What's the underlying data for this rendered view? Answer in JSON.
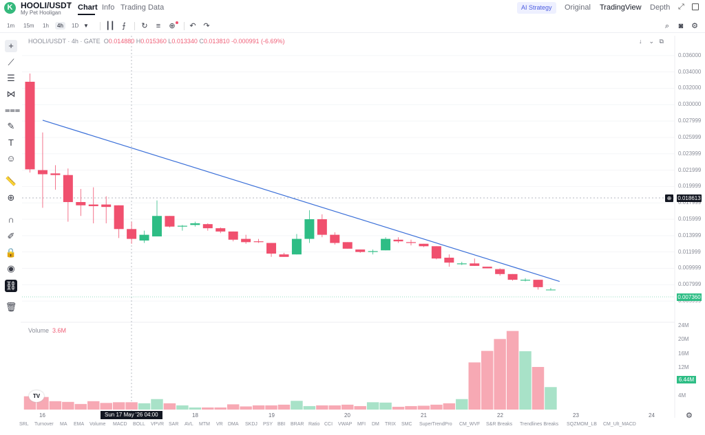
{
  "header": {
    "logo_letter": "K",
    "pair": "HOOLI/USDT",
    "caret": "▾",
    "subtitle": "My Pet Hooligan",
    "tabs": [
      "Chart",
      "Info",
      "Trading Data"
    ],
    "ai_strategy": "AI Strategy",
    "view_tabs": [
      "Original",
      "TradingView",
      "Depth"
    ]
  },
  "toolbar": {
    "timeframes": [
      "1m",
      "15m",
      "1h",
      "4h",
      "1D"
    ],
    "active_timeframe": "4h"
  },
  "legend": {
    "symbol": "HOOLI/USDT · 4h · GATE",
    "open_label": "O",
    "open": "0.014880",
    "high_label": "H",
    "high": "0.015360",
    "low_label": "L",
    "low": "0.013340",
    "close_label": "C",
    "close": "0.013810",
    "change": "-0.000991 (-6.69%)"
  },
  "volume_legend": {
    "label": "Volume",
    "value": "3.6M"
  },
  "price_axis": {
    "ticks": [
      "0.036000",
      "0.034000",
      "0.032000",
      "0.030000",
      "0.027999",
      "0.025999",
      "0.023999",
      "0.021999",
      "0.019999",
      "0.017999",
      "0.015999",
      "0.013999",
      "0.011999",
      "0.009999",
      "0.007999",
      "0.005999"
    ],
    "crosshair_price": "0.018613",
    "last_price": "0.007360"
  },
  "volume_axis": {
    "ticks": [
      "24M",
      "20M",
      "16M",
      "12M",
      "8M",
      "4M"
    ],
    "last_volume": "6.44M"
  },
  "time_axis": {
    "ticks": [
      "16",
      "18",
      "19",
      "20",
      "21",
      "22",
      "23",
      "24"
    ],
    "crosshair_date": "Sun 17 May '26   04:00"
  },
  "indicators": [
    "SRL",
    "Turnover",
    "MA",
    "EMA",
    "Volume",
    "MACD",
    "BOLL",
    "VPVR",
    "SAR",
    "AVL",
    "MTM",
    "VR",
    "DMA",
    "SKDJ",
    "PSY",
    "BBI",
    "BRAR",
    "Ratio",
    "CCI",
    "VWAP",
    "MFI",
    "DM",
    "TRIX",
    "SMC",
    "SuperTrendPro",
    "CM_WVF",
    "S&R Breaks",
    "Trendlines Breaks",
    "SQZMOM_LB",
    "CM_Ult_MACD"
  ],
  "colors": {
    "up": "#2ebd85",
    "down": "#f0506e",
    "up_vol": "#a8e2c8",
    "down_vol": "#f7a9b4",
    "trendline": "#3a6fd8",
    "accent": "#4b5be0"
  },
  "chart_data": {
    "type": "candlestick",
    "ylim": [
      0.005,
      0.0375
    ],
    "candles": [
      {
        "o": 0.0328,
        "h": 0.0338,
        "l": 0.0217,
        "c": 0.0221,
        "v": 3.8
      },
      {
        "o": 0.022,
        "h": 0.0266,
        "l": 0.0174,
        "c": 0.0215,
        "v": 3.6
      },
      {
        "o": 0.0216,
        "h": 0.0226,
        "l": 0.0196,
        "c": 0.0214,
        "v": 2.4
      },
      {
        "o": 0.0214,
        "h": 0.0222,
        "l": 0.0157,
        "c": 0.0181,
        "v": 2.2
      },
      {
        "o": 0.0181,
        "h": 0.0197,
        "l": 0.0164,
        "c": 0.0177,
        "v": 1.6
      },
      {
        "o": 0.0178,
        "h": 0.0199,
        "l": 0.0155,
        "c": 0.0176,
        "v": 2.4
      },
      {
        "o": 0.0178,
        "h": 0.0188,
        "l": 0.0155,
        "c": 0.0175,
        "v": 1.9
      },
      {
        "o": 0.0177,
        "h": 0.0177,
        "l": 0.0137,
        "c": 0.0148,
        "v": 2.1
      },
      {
        "o": 0.0148,
        "h": 0.0157,
        "l": 0.013,
        "c": 0.0136,
        "v": 2.1
      },
      {
        "o": 0.0134,
        "h": 0.0146,
        "l": 0.0131,
        "c": 0.0141,
        "v": 1.8
      },
      {
        "o": 0.0139,
        "h": 0.0183,
        "l": 0.0139,
        "c": 0.0164,
        "v": 3.0
      },
      {
        "o": 0.0164,
        "h": 0.0164,
        "l": 0.015,
        "c": 0.0151,
        "v": 1.8
      },
      {
        "o": 0.0151,
        "h": 0.0153,
        "l": 0.0146,
        "c": 0.0152,
        "v": 1.2
      },
      {
        "o": 0.0153,
        "h": 0.0157,
        "l": 0.0151,
        "c": 0.0155,
        "v": 0.6
      },
      {
        "o": 0.0154,
        "h": 0.0155,
        "l": 0.0146,
        "c": 0.0149,
        "v": 0.6
      },
      {
        "o": 0.0149,
        "h": 0.015,
        "l": 0.0143,
        "c": 0.0145,
        "v": 0.6
      },
      {
        "o": 0.0145,
        "h": 0.0145,
        "l": 0.0133,
        "c": 0.0135,
        "v": 1.5
      },
      {
        "o": 0.0136,
        "h": 0.0141,
        "l": 0.013,
        "c": 0.0132,
        "v": 0.9
      },
      {
        "o": 0.0133,
        "h": 0.0136,
        "l": 0.0131,
        "c": 0.0132,
        "v": 1.2
      },
      {
        "o": 0.0131,
        "h": 0.0131,
        "l": 0.0114,
        "c": 0.0118,
        "v": 1.2
      },
      {
        "o": 0.0117,
        "h": 0.0119,
        "l": 0.0114,
        "c": 0.0114,
        "v": 1.4
      },
      {
        "o": 0.0117,
        "h": 0.0142,
        "l": 0.0117,
        "c": 0.0136,
        "v": 2.5
      },
      {
        "o": 0.0136,
        "h": 0.0171,
        "l": 0.0131,
        "c": 0.016,
        "v": 1.0
      },
      {
        "o": 0.016,
        "h": 0.0166,
        "l": 0.0138,
        "c": 0.0141,
        "v": 1.2
      },
      {
        "o": 0.0141,
        "h": 0.0144,
        "l": 0.0129,
        "c": 0.0131,
        "v": 1.2
      },
      {
        "o": 0.0132,
        "h": 0.0132,
        "l": 0.0124,
        "c": 0.0124,
        "v": 1.4
      },
      {
        "o": 0.0123,
        "h": 0.0123,
        "l": 0.0119,
        "c": 0.012,
        "v": 1.0
      },
      {
        "o": 0.012,
        "h": 0.0123,
        "l": 0.0117,
        "c": 0.0121,
        "v": 2.1
      },
      {
        "o": 0.0122,
        "h": 0.0138,
        "l": 0.0122,
        "c": 0.0136,
        "v": 2.0
      },
      {
        "o": 0.0135,
        "h": 0.0138,
        "l": 0.0131,
        "c": 0.0133,
        "v": 0.8
      },
      {
        "o": 0.0132,
        "h": 0.0135,
        "l": 0.0128,
        "c": 0.0131,
        "v": 1.0
      },
      {
        "o": 0.013,
        "h": 0.013,
        "l": 0.0126,
        "c": 0.0127,
        "v": 1.1
      },
      {
        "o": 0.0127,
        "h": 0.0127,
        "l": 0.0111,
        "c": 0.0112,
        "v": 1.4
      },
      {
        "o": 0.0113,
        "h": 0.0117,
        "l": 0.0102,
        "c": 0.0107,
        "v": 1.8
      },
      {
        "o": 0.0105,
        "h": 0.0108,
        "l": 0.0104,
        "c": 0.0106,
        "v": 3.0
      },
      {
        "o": 0.0106,
        "h": 0.0112,
        "l": 0.0103,
        "c": 0.0103,
        "v": 13.5
      },
      {
        "o": 0.0102,
        "h": 0.0102,
        "l": 0.01,
        "c": 0.01,
        "v": 16.8
      },
      {
        "o": 0.0099,
        "h": 0.01,
        "l": 0.0091,
        "c": 0.0093,
        "v": 20.2
      },
      {
        "o": 0.0093,
        "h": 0.0093,
        "l": 0.0085,
        "c": 0.0086,
        "v": 22.5
      },
      {
        "o": 0.0085,
        "h": 0.0088,
        "l": 0.0084,
        "c": 0.0086,
        "v": 16.7
      },
      {
        "o": 0.0086,
        "h": 0.0086,
        "l": 0.0074,
        "c": 0.0077,
        "v": 12.2
      },
      {
        "o": 0.0074,
        "h": 0.0076,
        "l": 0.0073,
        "c": 0.0074,
        "v": 6.44
      }
    ],
    "trendline": {
      "from_index": 1,
      "from_price": 0.0281,
      "to_index": 41.7,
      "to_price": 0.0084
    },
    "volume_max": 24
  }
}
